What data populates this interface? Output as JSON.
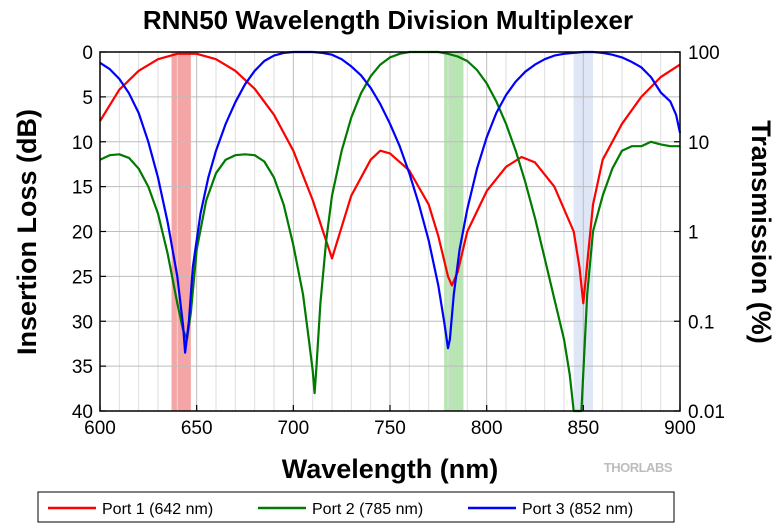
{
  "chart_data": {
    "type": "line",
    "title": "RNN50 Wavelength Division Multiplexer",
    "xlabel": "Wavelength (nm)",
    "ylabel": "Insertion Loss (dB)",
    "y2label": "Transmission (%)",
    "xlim": [
      600,
      900
    ],
    "ylim": [
      40,
      0
    ],
    "y2lim": [
      0.01,
      100
    ],
    "y2scale": "log",
    "grid": true,
    "legend_position": "bottom",
    "x_ticks": [
      "600",
      "650",
      "700",
      "750",
      "800",
      "850",
      "900"
    ],
    "y_ticks": [
      "0",
      "5",
      "10",
      "15",
      "20",
      "25",
      "30",
      "35",
      "40"
    ],
    "y2_ticks": [
      "100",
      "10",
      "1",
      "0.1",
      "0.01"
    ],
    "bands": [
      {
        "x0": 637,
        "x1": 647,
        "color": "#f4a6a6"
      },
      {
        "x0": 778,
        "x1": 788,
        "color": "#b9e4b4"
      },
      {
        "x0": 845,
        "x1": 855,
        "color": "#dfe6f6"
      }
    ],
    "series": [
      {
        "name": "Port 1 (642 nm)",
        "color": "#ff0000",
        "x": [
          600,
          610,
          620,
          630,
          640,
          650,
          660,
          670,
          680,
          690,
          700,
          710,
          720,
          730,
          740,
          745,
          750,
          760,
          770,
          775,
          780,
          782,
          785,
          790,
          800,
          810,
          818,
          825,
          835,
          845,
          848,
          850,
          855,
          860,
          870,
          880,
          890,
          900
        ],
        "y": [
          7.7,
          4.2,
          2.1,
          0.8,
          0.2,
          0.2,
          0.8,
          2.1,
          4.1,
          7.0,
          11.0,
          16.5,
          23.0,
          16.0,
          12.0,
          11.0,
          11.3,
          13.2,
          17.0,
          20.5,
          25.0,
          26.0,
          24.5,
          20.0,
          15.5,
          12.8,
          11.7,
          12.3,
          15.0,
          20.0,
          24.0,
          28.0,
          17.0,
          12.0,
          8.0,
          5.0,
          2.8,
          1.4
        ]
      },
      {
        "name": "Port 2 (785 nm)",
        "color": "#007a00",
        "x": [
          600,
          605,
          610,
          615,
          620,
          625,
          630,
          635,
          640,
          643,
          645,
          647,
          650,
          655,
          660,
          665,
          670,
          675,
          680,
          685,
          690,
          695,
          700,
          705,
          708,
          710,
          711,
          712,
          714,
          717,
          720,
          725,
          730,
          735,
          740,
          745,
          750,
          755,
          760,
          765,
          770,
          775,
          780,
          785,
          790,
          795,
          800,
          805,
          810,
          815,
          820,
          825,
          830,
          835,
          840,
          843,
          845,
          846,
          847,
          849,
          852,
          855,
          860,
          865,
          870,
          875,
          880,
          885,
          890,
          895,
          900
        ],
        "y": [
          12.0,
          11.5,
          11.4,
          11.8,
          13.0,
          15.0,
          18.0,
          22.5,
          28.0,
          31.0,
          32.0,
          29.0,
          22.0,
          16.5,
          13.5,
          12.0,
          11.5,
          11.4,
          11.5,
          12.2,
          14.0,
          17.0,
          21.5,
          27.0,
          32.0,
          35.5,
          38.0,
          35.0,
          28.0,
          21.0,
          16.0,
          11.0,
          7.3,
          4.6,
          2.7,
          1.4,
          0.6,
          0.2,
          0.0,
          0.0,
          0.0,
          0.0,
          0.2,
          0.5,
          1.0,
          2.0,
          3.5,
          5.5,
          8.0,
          11.0,
          14.5,
          18.5,
          23.0,
          27.5,
          32.0,
          36.0,
          40.0,
          40.0,
          40.0,
          40.0,
          27.0,
          20.0,
          16.0,
          13.0,
          11.0,
          10.5,
          10.5,
          10.0,
          10.3,
          10.5,
          10.5
        ]
      },
      {
        "name": "Port 3 (852 nm)",
        "color": "#0000ff",
        "x": [
          600,
          605,
          610,
          615,
          620,
          625,
          630,
          635,
          640,
          643,
          644,
          646,
          648,
          652,
          656,
          660,
          665,
          670,
          675,
          680,
          685,
          690,
          695,
          700,
          705,
          710,
          715,
          720,
          725,
          730,
          735,
          740,
          745,
          750,
          755,
          760,
          765,
          770,
          775,
          778,
          780,
          781,
          783,
          786,
          790,
          795,
          800,
          805,
          810,
          815,
          820,
          825,
          830,
          835,
          840,
          845,
          850,
          855,
          860,
          865,
          870,
          875,
          880,
          885,
          890,
          895,
          898,
          900
        ],
        "y": [
          1.2,
          1.9,
          3.0,
          4.6,
          6.8,
          10.0,
          14.0,
          19.0,
          25.0,
          30.5,
          33.5,
          30.0,
          24.0,
          18.0,
          14.0,
          11.0,
          8.0,
          5.6,
          3.6,
          2.1,
          1.0,
          0.4,
          0.1,
          0.0,
          0.0,
          0.0,
          0.1,
          0.3,
          0.8,
          1.6,
          2.6,
          4.0,
          5.8,
          8.0,
          10.5,
          13.5,
          17.0,
          21.0,
          26.0,
          30.0,
          33.0,
          32.0,
          27.0,
          22.0,
          17.5,
          13.0,
          9.5,
          6.8,
          4.8,
          3.3,
          2.2,
          1.4,
          0.8,
          0.4,
          0.2,
          0.1,
          0.0,
          0.0,
          0.1,
          0.3,
          0.6,
          1.1,
          1.7,
          2.8,
          4.5,
          5.5,
          7.0,
          9.0
        ]
      }
    ]
  },
  "brand_text": "THORLABS"
}
